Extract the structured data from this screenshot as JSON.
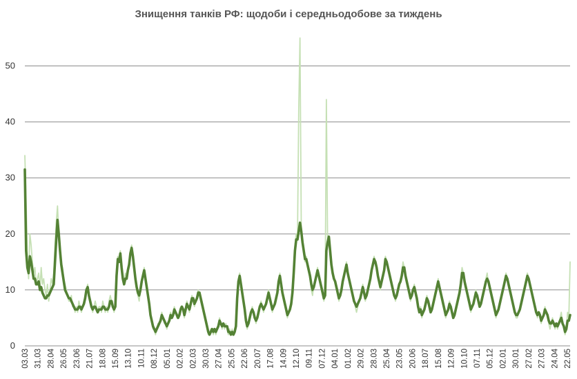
{
  "chart_data": {
    "type": "line",
    "title": "Знищення танків РФ: щодоби і середньодобове за тиждень",
    "xlabel": "",
    "ylabel": "",
    "ylim": [
      0,
      55
    ],
    "yticks": [
      0,
      10,
      20,
      30,
      40,
      50
    ],
    "grid": true,
    "legend": "none",
    "x_tick_labels": [
      "03.03",
      "31.03",
      "28.04",
      "26.05",
      "23.06",
      "21.07",
      "18.08",
      "15.09",
      "13.10",
      "10.11",
      "08.12",
      "05.01",
      "02.02",
      "02.03",
      "30.03",
      "27.04",
      "25.05",
      "22.06",
      "20.07",
      "17.08",
      "14.09",
      "12.10",
      "09.11",
      "07.12",
      "04.01",
      "01.02",
      "29.02",
      "28.03",
      "25.04",
      "23.05",
      "20.06",
      "18.07",
      "15.08",
      "12.09",
      "10.10",
      "07.11",
      "05.12",
      "02.01",
      "30.01",
      "27.02",
      "27.03",
      "24.04",
      "22.05"
    ],
    "series": [
      {
        "key": "daily",
        "color": "#c5e0b4",
        "values": [
          34,
          26,
          16,
          12,
          20,
          18,
          15,
          13,
          14,
          11,
          12,
          13,
          10,
          14,
          11,
          12,
          10,
          9,
          11,
          8,
          10,
          12,
          11,
          13,
          18,
          22,
          25,
          20,
          17,
          15,
          14,
          12,
          11,
          10,
          9,
          8,
          8,
          9,
          7,
          7,
          6,
          7,
          6,
          8,
          7,
          6,
          7,
          8,
          9,
          10,
          11,
          9,
          8,
          7,
          6,
          7,
          8,
          7,
          6,
          7,
          7,
          6,
          8,
          7,
          6,
          7,
          6,
          8,
          9,
          8,
          7,
          6,
          7,
          14,
          16,
          15,
          17,
          14,
          12,
          11,
          13,
          12,
          14,
          15,
          17,
          18,
          16,
          14,
          12,
          10,
          9,
          8,
          10,
          12,
          13,
          14,
          12,
          10,
          9,
          7,
          5,
          4,
          3,
          3,
          2,
          3,
          4,
          4,
          5,
          6,
          5,
          4,
          4,
          3,
          4,
          5,
          6,
          5,
          6,
          7,
          6,
          5,
          5,
          6,
          7,
          7,
          6,
          5,
          7,
          8,
          7,
          6,
          8,
          9,
          8,
          7,
          8,
          9,
          10,
          9,
          8,
          7,
          6,
          5,
          4,
          3,
          2,
          2,
          3,
          3,
          2,
          3,
          2,
          3,
          4,
          5,
          4,
          3,
          4,
          3,
          4,
          3,
          2,
          3,
          2,
          3,
          2,
          3,
          4,
          9,
          12,
          13,
          11,
          9,
          8,
          6,
          4,
          3,
          4,
          5,
          6,
          7,
          6,
          5,
          4,
          5,
          6,
          7,
          8,
          7,
          6,
          7,
          8,
          9,
          10,
          8,
          7,
          6,
          7,
          8,
          9,
          10,
          12,
          13,
          11,
          9,
          8,
          7,
          6,
          5,
          6,
          7,
          8,
          10,
          14,
          18,
          20,
          19,
          42,
          55,
          22,
          18,
          17,
          15,
          16,
          14,
          13,
          12,
          10,
          9,
          11,
          12,
          13,
          14,
          12,
          11,
          10,
          9,
          8,
          9,
          44,
          18,
          19,
          17,
          14,
          13,
          12,
          11,
          10,
          9,
          8,
          9,
          10,
          12,
          13,
          14,
          15,
          13,
          12,
          11,
          10,
          9,
          8,
          7,
          6,
          7,
          8,
          9,
          10,
          11,
          9,
          8,
          9,
          10,
          11,
          12,
          14,
          15,
          16,
          15,
          14,
          12,
          11,
          10,
          12,
          13,
          14,
          16,
          15,
          14,
          13,
          12,
          11,
          10,
          9,
          8,
          9,
          10,
          11,
          12,
          13,
          15,
          14,
          12,
          11,
          10,
          9,
          8,
          9,
          10,
          11,
          9,
          8,
          7,
          6,
          7,
          5,
          6,
          7,
          8,
          9,
          8,
          7,
          6,
          7,
          8,
          9,
          10,
          11,
          12,
          10,
          9,
          8,
          7,
          6,
          5,
          6,
          7,
          8,
          7,
          6,
          5,
          6,
          7,
          8,
          9,
          10,
          12,
          14,
          13,
          11,
          10,
          9,
          8,
          7,
          6,
          7,
          8,
          9,
          10,
          9,
          8,
          7,
          8,
          9,
          10,
          11,
          12,
          13,
          11,
          10,
          9,
          8,
          7,
          6,
          5,
          6,
          7,
          8,
          9,
          10,
          11,
          12,
          13,
          12,
          11,
          10,
          9,
          8,
          7,
          6,
          5,
          5,
          6,
          7,
          8,
          9,
          10,
          11,
          12,
          13,
          12,
          11,
          10,
          9,
          8,
          7,
          6,
          5,
          6,
          5,
          4,
          5,
          6,
          7,
          6,
          5,
          4,
          3,
          4,
          5,
          4,
          3,
          4,
          3,
          4,
          5,
          6,
          4,
          3,
          2,
          3,
          6,
          5,
          15
        ]
      },
      {
        "key": "weekly_avg",
        "color": "#548235",
        "values": [
          31.5,
          17,
          14,
          13,
          16,
          15,
          13.5,
          12,
          12,
          11,
          11,
          11.5,
          10,
          10.5,
          9.5,
          9,
          8.5,
          8.5,
          9,
          9,
          9.5,
          10,
          10.5,
          11,
          15,
          19,
          22.5,
          20,
          17,
          14.5,
          13,
          11.5,
          10,
          9.5,
          9,
          8.5,
          8.5,
          8,
          7.5,
          7,
          6.5,
          6.5,
          6.5,
          7,
          7,
          6.5,
          7,
          7.5,
          8.5,
          10,
          10.5,
          9,
          8,
          7,
          6.5,
          7,
          7,
          6.5,
          6,
          6.5,
          6.5,
          6.5,
          7,
          7,
          6.5,
          6.5,
          6.5,
          7,
          8,
          8,
          7,
          6.5,
          7,
          12.5,
          15.5,
          15,
          16.5,
          14,
          12,
          11,
          12,
          12,
          13.5,
          14.5,
          16.5,
          17.5,
          16,
          14,
          12,
          10.5,
          9.5,
          9,
          10,
          11.5,
          12.5,
          13.5,
          12,
          10.5,
          9,
          7.5,
          5.5,
          4.5,
          3.5,
          3,
          2.5,
          3,
          3.5,
          4,
          4.5,
          5.5,
          5,
          4.5,
          4,
          3.5,
          4,
          4.5,
          5.5,
          5,
          5.5,
          6.5,
          6,
          5.5,
          5,
          5.5,
          6.5,
          7,
          6.5,
          5.5,
          6.5,
          7.5,
          7,
          6.5,
          7.5,
          8.5,
          8.5,
          7.5,
          8,
          8.5,
          9.5,
          9.5,
          8.5,
          7.5,
          6.5,
          5.5,
          4.5,
          3.5,
          2.5,
          2,
          2.5,
          3,
          2.5,
          3,
          2.5,
          3,
          3.5,
          4.5,
          4,
          3.5,
          4,
          3.5,
          3.5,
          3.5,
          2.5,
          2.5,
          2,
          2.5,
          2,
          2.5,
          3.5,
          8.5,
          11.5,
          12.5,
          11,
          9.5,
          8,
          6.5,
          4.5,
          3.5,
          4,
          5,
          6,
          6.5,
          6,
          5,
          4.5,
          5,
          6,
          7,
          7.5,
          7,
          6.5,
          7,
          7.5,
          8.5,
          9.5,
          8.5,
          7.5,
          6.5,
          7,
          7.5,
          8.5,
          9.5,
          11.5,
          12.5,
          11,
          9.5,
          8.5,
          7.5,
          6.5,
          5.5,
          6,
          6.5,
          7.5,
          9.5,
          13,
          17,
          19,
          19,
          20.5,
          22,
          20.5,
          18.5,
          17,
          15.5,
          15.5,
          14.5,
          13.5,
          12.5,
          11,
          10,
          10.5,
          11.5,
          12.5,
          13.5,
          12.5,
          11.5,
          10.5,
          9.5,
          8.5,
          9,
          17,
          18.5,
          19.5,
          17,
          14.5,
          13,
          12,
          11.5,
          10.5,
          9.5,
          8.5,
          9,
          10,
          11.5,
          12.5,
          13.5,
          14.5,
          13,
          12,
          11,
          10,
          9,
          8,
          7.5,
          7,
          7.5,
          8,
          8.5,
          9.5,
          10.5,
          9.5,
          8.5,
          9,
          10,
          11,
          12,
          13.5,
          14.5,
          15.5,
          15,
          14,
          12.5,
          11.5,
          10.5,
          11.5,
          12.5,
          13.5,
          15.5,
          15,
          14,
          13,
          12,
          11,
          10,
          9,
          8.5,
          9,
          10,
          11,
          11.5,
          12.5,
          14,
          14,
          12.5,
          11.5,
          10.5,
          9.5,
          8.5,
          9,
          10,
          10.5,
          9.5,
          8.5,
          7,
          6,
          6.5,
          5.5,
          6,
          6.5,
          7.5,
          8.5,
          8,
          7,
          6,
          6.5,
          7.5,
          8.5,
          9.5,
          10.5,
          11.5,
          10.5,
          9.5,
          8.5,
          7.5,
          6.5,
          5.5,
          6,
          6.5,
          7.5,
          7,
          6,
          5,
          5.5,
          6.5,
          7.5,
          8.5,
          9.5,
          11,
          13,
          13,
          11.5,
          10.5,
          9.5,
          8.5,
          7.5,
          6.5,
          7,
          7.5,
          8.5,
          9.5,
          9,
          8,
          7,
          7.5,
          8.5,
          9.5,
          10.5,
          11.5,
          12,
          11.5,
          10.5,
          9.5,
          8.5,
          7.5,
          6.5,
          5.5,
          6,
          6.5,
          7.5,
          8.5,
          9.5,
          10.5,
          11.5,
          12.5,
          12,
          11,
          10,
          9,
          8,
          7,
          6,
          5.5,
          5.5,
          6,
          6.5,
          7.5,
          8.5,
          9.5,
          10.5,
          11.5,
          12.5,
          12,
          11,
          10,
          9,
          8,
          7,
          6,
          5.5,
          6,
          5.5,
          4.5,
          5,
          5.5,
          6.5,
          6,
          5.5,
          4.5,
          4,
          4,
          4.5,
          4,
          3.5,
          4,
          3.5,
          4,
          4.5,
          5,
          4,
          3.5,
          2.5,
          3,
          4.5,
          4.5,
          5.5
        ]
      }
    ]
  }
}
